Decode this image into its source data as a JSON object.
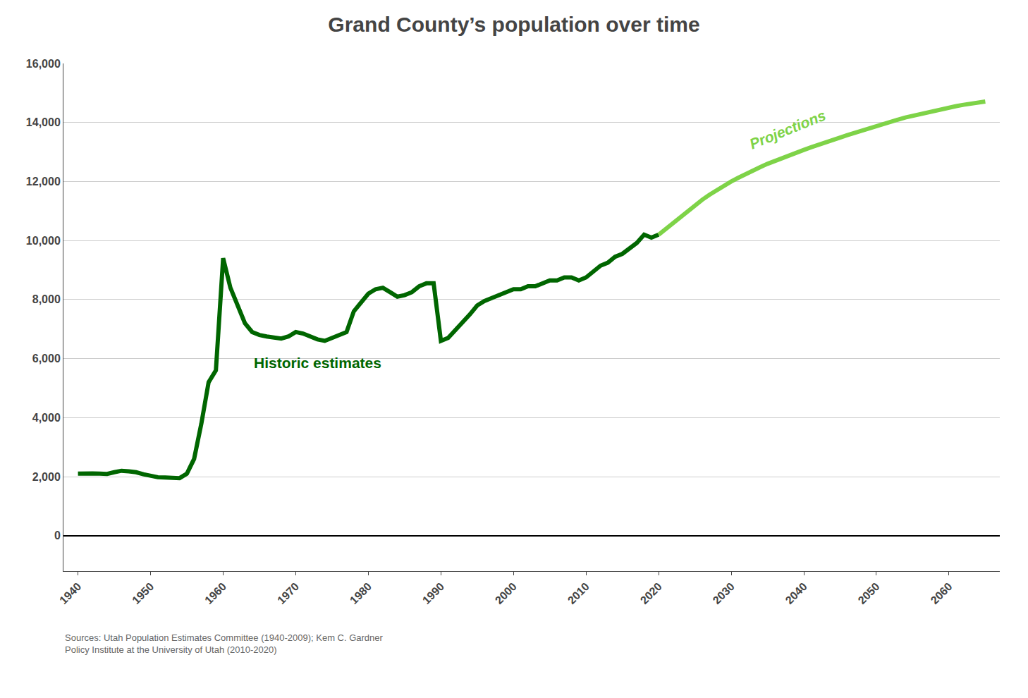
{
  "chart_data": {
    "type": "line",
    "title": "Grand County’s population over time",
    "annotations": [
      "Sources: Utah Population Estimates Committee (1940-2009); Kem C. Gardner\nPolicy Institute at the University of Utah (2010-2020)"
    ],
    "series": [
      {
        "name": "Historic estimates",
        "color": "#006600",
        "x": [
          1940,
          1941,
          1942,
          1943,
          1944,
          1945,
          1946,
          1947,
          1948,
          1949,
          1950,
          1951,
          1952,
          1953,
          1954,
          1955,
          1956,
          1957,
          1958,
          1959,
          1960,
          1961,
          1962,
          1963,
          1964,
          1965,
          1966,
          1967,
          1968,
          1969,
          1970,
          1971,
          1972,
          1973,
          1974,
          1975,
          1976,
          1977,
          1978,
          1979,
          1980,
          1981,
          1982,
          1983,
          1984,
          1985,
          1986,
          1987,
          1988,
          1989,
          1990,
          1991,
          1992,
          1993,
          1994,
          1995,
          1996,
          1997,
          1998,
          1999,
          2000,
          2001,
          2002,
          2003,
          2004,
          2005,
          2006,
          2007,
          2008,
          2009,
          2010,
          2011,
          2012,
          2013,
          2014,
          2015,
          2016,
          2017,
          2018,
          2019,
          2020
        ],
        "values": [
          2100,
          2120,
          2110,
          2100,
          2090,
          2150,
          2200,
          2180,
          2150,
          2080,
          2020,
          1980,
          1970,
          1960,
          1950,
          2100,
          2600,
          3800,
          5200,
          5600,
          9400,
          8400,
          7800,
          7200,
          6900,
          6800,
          6750,
          6720,
          6680,
          6750,
          6900,
          6850,
          6750,
          6650,
          6600,
          6700,
          6800,
          6900,
          7600,
          7900,
          8200,
          8350,
          8400,
          8250,
          8100,
          8150,
          8250,
          8450,
          8550,
          8550,
          6600,
          6700,
          6950,
          7200,
          7500,
          7800,
          7950,
          8050,
          8150,
          8250,
          8350,
          8350,
          8450,
          8450,
          8550,
          8650,
          8650,
          8750,
          8750,
          8650,
          8750,
          8950,
          9150,
          9250,
          9450,
          9550,
          9720,
          9920,
          10200,
          10100,
          10200
        ]
      },
      {
        "name": "Projections",
        "color": "#7ED348",
        "x": [
          2020,
          2021,
          2022,
          2023,
          2024,
          2025,
          2026,
          2027,
          2028,
          2029,
          2030,
          2031,
          2032,
          2033,
          2034,
          2035,
          2036,
          2037,
          2038,
          2039,
          2040,
          2041,
          2042,
          2043,
          2044,
          2045,
          2046,
          2047,
          2048,
          2049,
          2050,
          2051,
          2052,
          2053,
          2054,
          2055,
          2056,
          2057,
          2058,
          2059,
          2060,
          2061,
          2062,
          2063,
          2064,
          2065
        ],
        "values": [
          10200,
          10400,
          10600,
          10800,
          11000,
          11200,
          11380,
          11550,
          11710,
          11860,
          12000,
          12130,
          12260,
          12380,
          12490,
          12600,
          12700,
          12800,
          12890,
          12980,
          13070,
          13160,
          13250,
          13330,
          13410,
          13490,
          13570,
          13650,
          13730,
          13810,
          13890,
          13960,
          14030,
          14100,
          14170,
          14230,
          14290,
          14350,
          14410,
          14460,
          14510,
          14555,
          14600,
          14640,
          14680,
          14710
        ]
      }
    ],
    "xlim": [
      1938,
      2067
    ],
    "xticks": [
      1940,
      1950,
      1960,
      1970,
      1980,
      1990,
      2000,
      2010,
      2020,
      2030,
      2040,
      2050,
      2060
    ],
    "ylim": [
      -1200,
      16000
    ],
    "yticks": [
      0,
      {
        "value": 2000,
        "label": "2,000"
      },
      {
        "value": 4000,
        "label": "4,000"
      },
      {
        "value": 6000,
        "label": "6,000"
      },
      {
        "value": 8000,
        "label": "8,000"
      },
      {
        "value": 10000,
        "label": "10,000"
      },
      {
        "value": 12000,
        "label": "12,000"
      },
      {
        "value": 14000,
        "label": "14,000"
      },
      {
        "value": 16000,
        "label": "16,000"
      }
    ],
    "grid": true
  }
}
